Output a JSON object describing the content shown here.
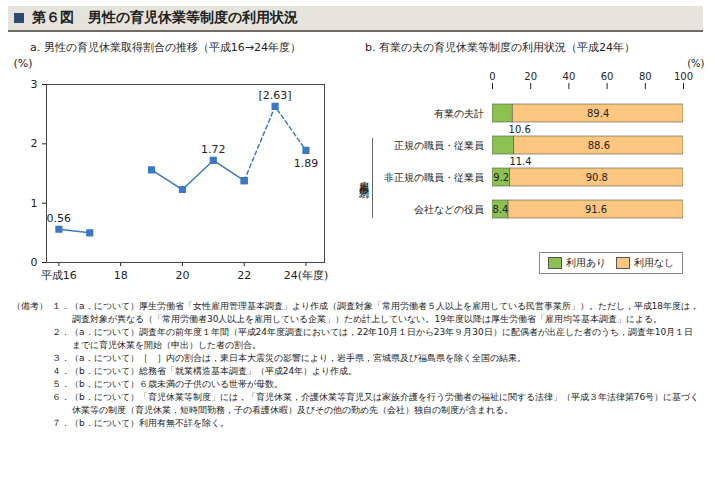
{
  "figure_title": "第６図　男性の育児休業等制度の利用状況",
  "chart_data": [
    {
      "type": "line",
      "title": "a. 男性の育児休業取得割合の推移（平成16→24年度）",
      "y_label": "(%)",
      "x": [
        16,
        17,
        18,
        19,
        20,
        21,
        22,
        23,
        24
      ],
      "series": [
        {
          "color": "#3b78c4",
          "line_style": "solid",
          "marker": "square",
          "values": [
            0.56,
            0.5,
            null,
            1.56,
            1.23,
            1.72,
            1.38,
            null,
            null
          ],
          "value_labels": [
            "0.56",
            null,
            null,
            null,
            null,
            "1.72",
            null,
            null,
            null
          ]
        },
        {
          "color": "#3b78c4",
          "line_style": "dashed",
          "marker": "square",
          "values": [
            null,
            null,
            null,
            null,
            null,
            null,
            1.38,
            2.63,
            1.89
          ],
          "value_labels": [
            null,
            null,
            null,
            null,
            null,
            null,
            null,
            "[2.63]",
            "1.89"
          ]
        }
      ],
      "xlim": [
        15.6,
        24.6
      ],
      "xticks": [
        {
          "value": 16,
          "label": "平成16"
        },
        18,
        20,
        22,
        {
          "value": 24,
          "label": "24(年度)"
        }
      ],
      "ylim": [
        0,
        3
      ],
      "yticks": [
        0,
        1,
        2,
        3
      ],
      "data_labels": true,
      "grid": false
    },
    {
      "type": "bar",
      "orientation": "horizontal",
      "stacked": true,
      "title": "b. 有業の夫の育児休業等制度の利用状況（平成24年）",
      "x_label": "(%)",
      "categories": [
        "有業の夫計",
        "正規の職員・従業員",
        "非正規の職員・従業員",
        "会社などの役員"
      ],
      "category_group_label": "雇用形態別",
      "series": [
        {
          "name": "利用あり",
          "color": "#8cc152",
          "values": [
            10.6,
            11.4,
            9.2,
            8.4
          ]
        },
        {
          "name": "利用なし",
          "color": "#fbc680",
          "values": [
            89.4,
            88.6,
            90.8,
            91.6
          ]
        }
      ],
      "xlim": [
        0,
        100
      ],
      "xticks": [
        0,
        20,
        40,
        60,
        80,
        100
      ],
      "data_labels": true,
      "legend": "bottom-right",
      "grid": false
    }
  ],
  "notes": {
    "heading": "（備考）",
    "items": [
      "１．（a．について）厚生労働省「女性雇用管理基本調査」より作成（調査対象「常用労働者５人以上を雇用している民営事業所」）。ただし，平成18年度は，調査対象が異なる（「常用労働者30人以上を雇用している企業」）ため計上していない。19年度以降は厚生労働省「雇用均等基本調査」による。",
      "２．（a．について）調査年の前年度１年間（平成24年度調査においては，22年10月１日から23年９月30日）に配偶者が出産した者のうち，調査年10月１日までに育児休業を開始（申出）した者の割合。",
      "３．（a．について）［　］内の割合は，東日本大震災の影響により，岩手県，宮城県及び福島県を除く全国の結果。",
      "４．（b．について）総務省「就業構造基本調査」（平成24年）より作成。",
      "５．（b．について）６歳未満の子供のいる世帯が母数。",
      "６．（b．について）「育児休業等制度」には，「育児休業，介護休業等育児又は家族介護を行う労働者の福祉に関する法律」（平成３年法律第76号）に基づく休業等の制度（育児休業，短時間勤務，子の看護休暇）及びその他の勤め先（会社）独自の制度が含まれる。",
      "７．（b．について）利用有無不詳を除く。"
    ]
  }
}
